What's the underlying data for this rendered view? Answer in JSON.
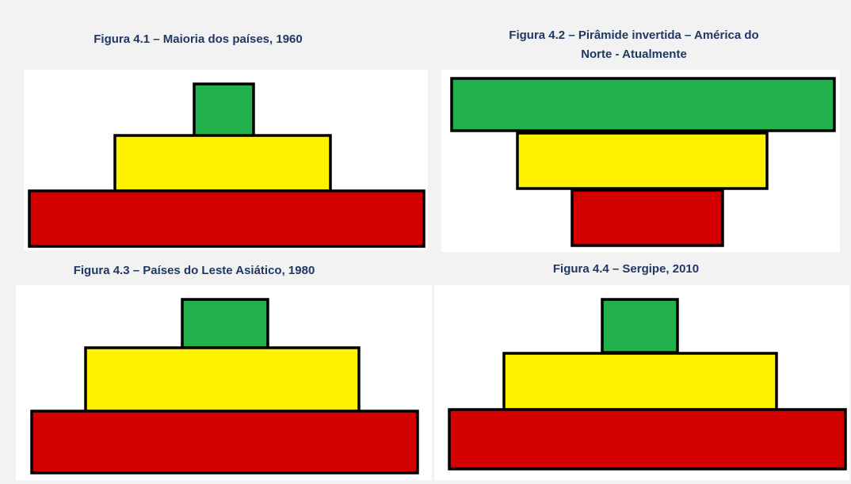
{
  "figures": [
    {
      "title_lines": [
        "Figura 4.1 – Maioria dos países, 1960"
      ]
    },
    {
      "title_lines": [
        "Figura 4.2 – Pirâmide invertida – América do",
        "Norte - Atualmente"
      ]
    },
    {
      "title_lines": [
        "Figura 4.3 – Países do Leste Asiático, 1980"
      ]
    },
    {
      "title_lines": [
        "Figura 4.4 – Sergipe, 2010"
      ]
    }
  ]
}
